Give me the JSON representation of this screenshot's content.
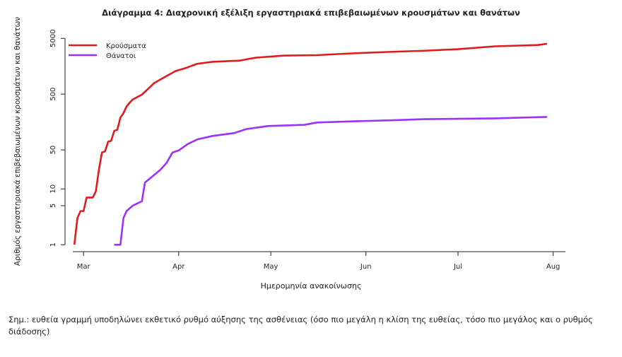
{
  "chart_data": {
    "type": "line",
    "title": "Διάγραμμα 4: Διαχρονική εξέλιξη εργαστηριακά επιβεβαιωμένων κρουσμάτων και θανάτων",
    "x_label": "Ημερομηνία ανακοίνωσης",
    "y_label": "Αριθμός εργαστηριακά επιβεβαιωμένων κρουσμάτων και θανάτων",
    "log_y": true,
    "legend": "top-left",
    "xlim": [
      -3.5,
      157
    ],
    "ylim": [
      0.75,
      6000
    ],
    "xticks": [
      {
        "value": 0,
        "label": "Mar"
      },
      {
        "value": 31,
        "label": "Apr"
      },
      {
        "value": 61,
        "label": "May"
      },
      {
        "value": 92,
        "label": "Jun"
      },
      {
        "value": 122,
        "label": "Jul"
      },
      {
        "value": 153,
        "label": "Aug"
      }
    ],
    "yticks": [
      1,
      5,
      10,
      50,
      500,
      5000
    ],
    "series": [
      {
        "name": "Κρούσματα",
        "color": "#e31a1c",
        "x": [
          -3,
          -2,
          -1,
          0,
          1,
          2,
          3,
          4,
          5,
          6,
          7,
          8,
          9,
          10,
          11,
          12,
          13,
          14,
          15,
          16,
          19,
          21,
          23,
          26,
          28,
          30,
          33,
          37,
          42,
          51,
          56,
          65,
          76,
          88,
          99,
          111,
          122,
          134,
          148,
          151
        ],
        "values": [
          1,
          3,
          4,
          4,
          7,
          7,
          7,
          9,
          22,
          45,
          47,
          70,
          73,
          110,
          115,
          190,
          228,
          300,
          350,
          400,
          490,
          620,
          790,
          980,
          1130,
          1300,
          1450,
          1750,
          1900,
          2000,
          2250,
          2450,
          2500,
          2700,
          2850,
          3000,
          3200,
          3600,
          3800,
          4000
        ]
      },
      {
        "name": "Θάνατοι",
        "color": "#9b30ff",
        "x": [
          10,
          12,
          13,
          14,
          16,
          19,
          20,
          22,
          25,
          27,
          29,
          31,
          34,
          37,
          42,
          49,
          53,
          60,
          72,
          76,
          88,
          99,
          111,
          134,
          151
        ],
        "values": [
          1,
          1,
          3,
          4,
          5,
          6,
          13,
          16,
          22,
          29,
          45,
          49,
          64,
          77,
          89,
          100,
          118,
          134,
          141,
          155,
          163,
          169,
          178,
          184,
          195
        ]
      }
    ],
    "note": "Σημ.: ευθεία γραμμή υποδηλώνει εκθετικό ρυθμό αύξησης της ασθένειας (όσο πιο μεγάλη η κλίση της ευθείας, τόσο πιο μεγάλος και ο ρυθμός διάδοσης)"
  }
}
